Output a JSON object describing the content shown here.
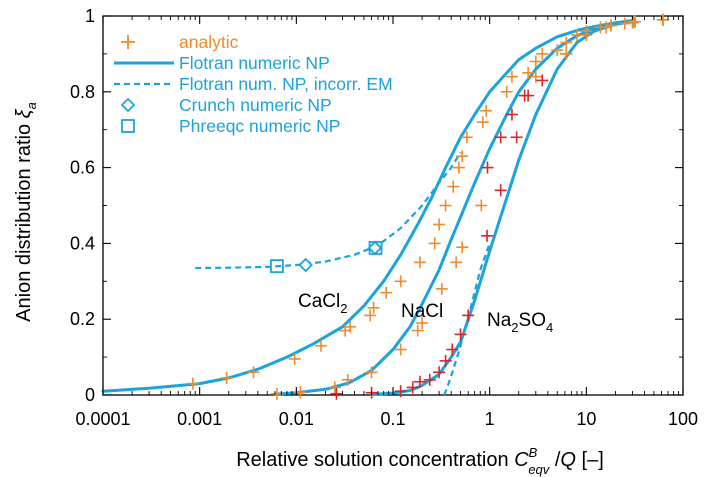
{
  "chart_data": {
    "type": "line",
    "xscale": "log",
    "xlim": [
      0.0001,
      100
    ],
    "ylim": [
      0,
      1
    ],
    "xticks": [
      {
        "value": 0.0001,
        "label": "0.0001"
      },
      {
        "value": 0.001,
        "label": "0.001"
      },
      {
        "value": 0.01,
        "label": "0.01"
      },
      {
        "value": 0.1,
        "label": "0.1"
      },
      {
        "value": 1,
        "label": "1"
      },
      {
        "value": 10,
        "label": "10"
      },
      {
        "value": 100,
        "label": "100"
      }
    ],
    "yticks": [
      {
        "value": 0,
        "label": "0"
      },
      {
        "value": 0.2,
        "label": "0.2"
      },
      {
        "value": 0.4,
        "label": "0.4"
      },
      {
        "value": 0.6,
        "label": "0.6"
      },
      {
        "value": 0.8,
        "label": "0.8"
      },
      {
        "value": 1,
        "label": "1"
      }
    ],
    "xlabel": {
      "main": "Relative solution concentration ",
      "var": "C",
      "sup": "B",
      "sub": "eqv",
      "rest": " /",
      "var2": "Q",
      "unit": " [–]"
    },
    "ylabel": {
      "main": "Anion distribution ratio ",
      "var": "ξ",
      "sub": "a"
    },
    "colors": {
      "analytic": "#f08a2c",
      "analytic_red": "#d8262b",
      "numeric": "#1aa3dc"
    },
    "legend": [
      {
        "symbol": "plus",
        "label": "analytic"
      },
      {
        "symbol": "solid",
        "label": "Flotran numeric NP"
      },
      {
        "symbol": "dashed",
        "label": "Flotran num. NP, incorr. EM"
      },
      {
        "symbol": "diamond",
        "label": "Crunch numeric NP"
      },
      {
        "symbol": "square",
        "label": "Phreeqc numeric NP"
      }
    ],
    "series_labels": [
      {
        "name": "CaCl",
        "sub": "2"
      },
      {
        "name": "NaCl",
        "sub": ""
      },
      {
        "name": "Na",
        "sub": "2",
        "mid": "SO",
        "sub2": "4"
      }
    ],
    "series": [
      {
        "name": "CaCl2",
        "numeric_x": [
          0.0001,
          0.0003,
          0.001,
          0.002,
          0.004,
          0.008,
          0.015,
          0.03,
          0.05,
          0.08,
          0.12,
          0.18,
          0.25,
          0.35,
          0.5,
          0.7,
          1,
          1.5,
          2,
          3,
          5,
          8,
          12,
          20,
          30
        ],
        "numeric_y": [
          0.01,
          0.018,
          0.03,
          0.045,
          0.068,
          0.1,
          0.135,
          0.18,
          0.235,
          0.3,
          0.37,
          0.45,
          0.52,
          0.6,
          0.68,
          0.74,
          0.8,
          0.85,
          0.885,
          0.915,
          0.945,
          0.962,
          0.972,
          0.982,
          0.988
        ],
        "analytic_x": [
          0.00085,
          0.0019,
          0.0036,
          0.0096,
          0.018,
          0.032,
          0.036,
          0.058,
          0.063,
          0.085,
          0.12,
          0.19,
          0.27,
          0.3,
          0.35,
          0.42,
          0.48,
          0.52,
          0.58,
          0.85,
          0.92,
          1.5,
          1.7,
          2.5,
          3,
          3.5,
          5,
          6.2,
          8,
          10,
          14,
          18,
          25,
          30,
          32,
          62
        ],
        "analytic_y": [
          0.03,
          0.045,
          0.06,
          0.095,
          0.13,
          0.17,
          0.18,
          0.21,
          0.23,
          0.27,
          0.3,
          0.35,
          0.4,
          0.45,
          0.5,
          0.55,
          0.6,
          0.63,
          0.68,
          0.72,
          0.75,
          0.8,
          0.84,
          0.85,
          0.88,
          0.9,
          0.91,
          0.93,
          0.95,
          0.96,
          0.97,
          0.975,
          0.98,
          0.982,
          0.985,
          0.99
        ]
      },
      {
        "name": "NaCl",
        "numeric_x": [
          0.006,
          0.01,
          0.02,
          0.035,
          0.06,
          0.1,
          0.15,
          0.2,
          0.3,
          0.4,
          0.5,
          0.7,
          1,
          1.5,
          2,
          3,
          5,
          8,
          12,
          20,
          30
        ],
        "numeric_y": [
          0.002,
          0.006,
          0.015,
          0.032,
          0.065,
          0.12,
          0.18,
          0.24,
          0.33,
          0.41,
          0.47,
          0.56,
          0.65,
          0.74,
          0.8,
          0.86,
          0.915,
          0.948,
          0.965,
          0.978,
          0.985
        ],
        "analytic_x": [
          0.0063,
          0.011,
          0.025,
          0.034,
          0.06,
          0.12,
          0.18,
          0.2,
          0.32,
          0.45,
          0.52,
          0.82,
          0.95,
          1.3,
          1.7,
          2.5,
          3,
          6.2,
          10,
          18,
          31,
          62
        ],
        "analytic_y": [
          0.003,
          0.007,
          0.02,
          0.04,
          0.06,
          0.12,
          0.17,
          0.19,
          0.28,
          0.35,
          0.39,
          0.5,
          0.6,
          0.68,
          0.74,
          0.79,
          0.84,
          0.9,
          0.95,
          0.975,
          0.985,
          0.99
        ]
      },
      {
        "name": "Na2SO4",
        "numeric_x": [
          0.06,
          0.1,
          0.15,
          0.2,
          0.3,
          0.4,
          0.5,
          0.7,
          1,
          1.5,
          2,
          3,
          5,
          8,
          12,
          20,
          30
        ],
        "numeric_y": [
          0.001,
          0.005,
          0.012,
          0.025,
          0.055,
          0.1,
          0.14,
          0.25,
          0.38,
          0.52,
          0.62,
          0.74,
          0.86,
          0.93,
          0.96,
          0.978,
          0.985
        ],
        "analytic_x": [
          0.026,
          0.06,
          0.12,
          0.16,
          0.19,
          0.24,
          0.3,
          0.35,
          0.41,
          0.5,
          0.6,
          0.94,
          1.3,
          1.9,
          2.3,
          3.5,
          6.2,
          16,
          62
        ],
        "analytic_y": [
          0.003,
          0.006,
          0.01,
          0.02,
          0.035,
          0.04,
          0.06,
          0.09,
          0.12,
          0.16,
          0.21,
          0.42,
          0.54,
          0.68,
          0.79,
          0.83,
          0.9,
          0.97,
          0.99
        ]
      }
    ],
    "dashed_curves": [
      {
        "x": [
          0.0009,
          0.002,
          0.005,
          0.01,
          0.02,
          0.04,
          0.07,
          0.12,
          0.2,
          0.3,
          0.4,
          0.5
        ],
        "y": [
          0.335,
          0.336,
          0.338,
          0.343,
          0.352,
          0.37,
          0.395,
          0.44,
          0.5,
          0.56,
          0.6,
          0.64
        ]
      },
      {
        "x": [
          0.34,
          0.4,
          0.5,
          0.65,
          0.8,
          1
        ],
        "y": [
          0.0,
          0.05,
          0.13,
          0.24,
          0.33,
          0.4
        ]
      }
    ],
    "crunch_points": [
      {
        "x": 0.0125,
        "y": 0.343
      },
      {
        "x": 0.065,
        "y": 0.388
      }
    ],
    "phreeqc_points": [
      {
        "x": 0.0063,
        "y": 0.34
      },
      {
        "x": 0.066,
        "y": 0.388
      }
    ]
  }
}
